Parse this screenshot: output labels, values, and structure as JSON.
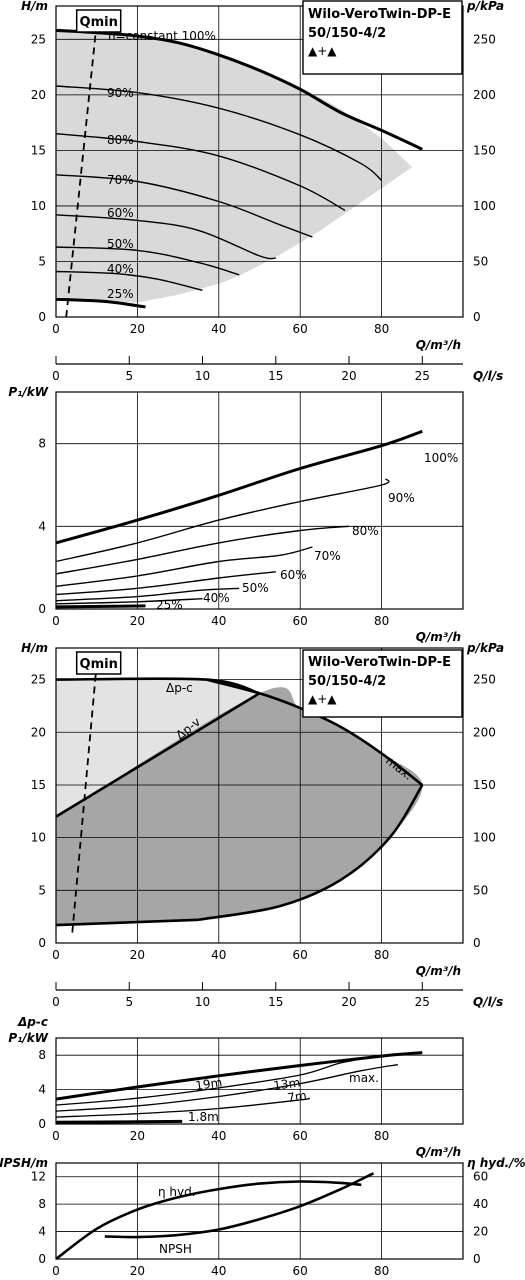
{
  "title_block": {
    "line1": "Wilo-VeroTwin-DP-E",
    "line2": "50/150-4/2",
    "pumps": "▲+▲"
  },
  "chart_data": [
    {
      "id": "hq_speed",
      "type": "line",
      "ylabel": "H/m",
      "y2label": "p/kPa",
      "xlabel": "Q/m³/h",
      "x2label": "Q/l/s",
      "xlim": [
        0,
        100
      ],
      "ylim": [
        0,
        28
      ],
      "xticks": [
        "0",
        "20",
        "40",
        "60",
        "80"
      ],
      "yticks": [
        "0",
        "5",
        "10",
        "15",
        "20",
        "25"
      ],
      "y2ticks": [
        "0",
        "50",
        "100",
        "150",
        "200",
        "250"
      ],
      "x2ticks": [
        "0",
        "5",
        "10",
        "15",
        "20",
        "25"
      ],
      "qmin_label": "Qmin",
      "qmin_line": [
        [
          2.5,
          0
        ],
        [
          10,
          26.5
        ]
      ],
      "operating_region": [
        [
          0,
          26
        ],
        [
          10,
          25.7
        ],
        [
          20,
          25.3
        ],
        [
          30,
          24.7
        ],
        [
          40,
          23.7
        ],
        [
          50,
          22.3
        ],
        [
          60,
          20.7
        ],
        [
          70,
          18.7
        ],
        [
          80,
          16.1
        ],
        [
          87.5,
          13.5
        ],
        [
          65,
          7.8
        ],
        [
          55,
          5.6
        ],
        [
          45,
          3.7
        ],
        [
          40,
          3.0
        ],
        [
          30,
          2.0
        ],
        [
          20,
          1.3
        ],
        [
          10,
          1.5
        ],
        [
          0,
          1.8
        ]
      ],
      "series": [
        {
          "name": "n=constant 100%",
          "points": [
            [
              0,
              25.8
            ],
            [
              10,
              25.6
            ],
            [
              20,
              25.3
            ],
            [
              30,
              24.7
            ],
            [
              40,
              23.6
            ],
            [
              50,
              22.2
            ],
            [
              60,
              20.5
            ],
            [
              70,
              18.4
            ],
            [
              80,
              16.8
            ],
            [
              90,
              15.1
            ]
          ]
        },
        {
          "name": "90%",
          "points": [
            [
              0,
              20.8
            ],
            [
              20,
              20.2
            ],
            [
              40,
              18.8
            ],
            [
              60,
              16.4
            ],
            [
              75,
              13.8
            ],
            [
              80,
              12.3
            ]
          ]
        },
        {
          "name": "80%",
          "points": [
            [
              0,
              16.5
            ],
            [
              20,
              15.8
            ],
            [
              40,
              14.5
            ],
            [
              60,
              11.8
            ],
            [
              71,
              9.6
            ]
          ]
        },
        {
          "name": "70%",
          "points": [
            [
              0,
              12.8
            ],
            [
              20,
              12.2
            ],
            [
              40,
              10.4
            ],
            [
              55,
              8.3
            ],
            [
              63,
              7.2
            ]
          ]
        },
        {
          "name": "60%",
          "points": [
            [
              0,
              9.2
            ],
            [
              20,
              8.7
            ],
            [
              35,
              7.8
            ],
            [
              50,
              5.5
            ],
            [
              54,
              5.3
            ]
          ]
        },
        {
          "name": "50%",
          "points": [
            [
              0,
              6.3
            ],
            [
              20,
              6.0
            ],
            [
              35,
              4.9
            ],
            [
              45,
              3.8
            ]
          ]
        },
        {
          "name": "40%",
          "points": [
            [
              0,
              4.1
            ],
            [
              15,
              3.9
            ],
            [
              25,
              3.4
            ],
            [
              36,
              2.4
            ]
          ]
        },
        {
          "name": "25%",
          "points": [
            [
              0,
              1.6
            ],
            [
              12,
              1.4
            ],
            [
              22,
              0.9
            ]
          ]
        }
      ],
      "thick_series": [
        "n=constant 100%",
        "25%"
      ]
    },
    {
      "id": "power_speed",
      "type": "line",
      "ylabel": "P₁/kW",
      "xlabel": "Q/m³/h",
      "xlim": [
        0,
        100
      ],
      "ylim": [
        0,
        10.5
      ],
      "xticks": [
        "0",
        "20",
        "40",
        "60",
        "80"
      ],
      "yticks": [
        "0",
        "4",
        "8"
      ],
      "series": [
        {
          "name": "100%",
          "points": [
            [
              0,
              3.2
            ],
            [
              20,
              4.3
            ],
            [
              40,
              5.5
            ],
            [
              60,
              6.8
            ],
            [
              80,
              7.9
            ],
            [
              90,
              8.6
            ]
          ]
        },
        {
          "name": "90%",
          "points": [
            [
              0,
              2.3
            ],
            [
              20,
              3.2
            ],
            [
              40,
              4.3
            ],
            [
              60,
              5.2
            ],
            [
              80,
              6.0
            ],
            [
              81,
              6.3
            ]
          ]
        },
        {
          "name": "80%",
          "points": [
            [
              0,
              1.7
            ],
            [
              20,
              2.4
            ],
            [
              40,
              3.2
            ],
            [
              60,
              3.8
            ],
            [
              72,
              4.0
            ]
          ]
        },
        {
          "name": "70%",
          "points": [
            [
              0,
              1.1
            ],
            [
              20,
              1.6
            ],
            [
              40,
              2.3
            ],
            [
              55,
              2.6
            ],
            [
              63,
              3.0
            ]
          ]
        },
        {
          "name": "60%",
          "points": [
            [
              0,
              0.7
            ],
            [
              20,
              1.0
            ],
            [
              40,
              1.5
            ],
            [
              54,
              1.8
            ]
          ]
        },
        {
          "name": "50%",
          "points": [
            [
              0,
              0.4
            ],
            [
              20,
              0.6
            ],
            [
              35,
              0.9
            ],
            [
              45,
              1.0
            ]
          ]
        },
        {
          "name": "40%",
          "points": [
            [
              0,
              0.25
            ],
            [
              20,
              0.35
            ],
            [
              36,
              0.5
            ]
          ]
        },
        {
          "name": "25%",
          "points": [
            [
              0,
              0.1
            ],
            [
              22,
              0.15
            ]
          ]
        }
      ],
      "thick_series": [
        "100%",
        "25%"
      ]
    },
    {
      "id": "hq_dp",
      "type": "area",
      "ylabel": "H/m",
      "y2label": "p/kPa",
      "xlabel": "Q/m³/h",
      "x2label": "Q/l/s",
      "xlim": [
        0,
        100
      ],
      "ylim": [
        0,
        28
      ],
      "xticks": [
        "0",
        "20",
        "40",
        "60",
        "80"
      ],
      "yticks": [
        "0",
        "5",
        "10",
        "15",
        "20",
        "25"
      ],
      "y2ticks": [
        "0",
        "50",
        "100",
        "150",
        "200",
        "250"
      ],
      "x2ticks": [
        "0",
        "5",
        "10",
        "15",
        "20",
        "25"
      ],
      "qmin_label": "Qmin",
      "qmin_line": [
        [
          4,
          1
        ],
        [
          10,
          26.5
        ]
      ],
      "light_region": [
        [
          0,
          25
        ],
        [
          37,
          25
        ],
        [
          50,
          23.7
        ],
        [
          0,
          12
        ]
      ],
      "dark_region": [
        [
          0,
          12
        ],
        [
          50,
          23.7
        ],
        [
          60,
          22.3
        ],
        [
          70,
          20.5
        ],
        [
          80,
          18
        ],
        [
          90,
          15
        ],
        [
          82,
          10
        ],
        [
          70,
          6
        ],
        [
          55,
          3.5
        ],
        [
          35,
          2.2
        ],
        [
          0,
          1.7
        ]
      ],
      "series": [
        {
          "name": "Δp-c",
          "points": [
            [
              0,
              25
            ],
            [
              37,
              25
            ],
            [
              50,
              23.7
            ]
          ]
        },
        {
          "name": "Δp-v",
          "points": [
            [
              0,
              12
            ],
            [
              50,
              23.7
            ]
          ]
        },
        {
          "name": "max.",
          "points": [
            [
              37,
              25
            ],
            [
              50,
              23.7
            ],
            [
              60,
              22.3
            ],
            [
              70,
              20.5
            ],
            [
              80,
              18
            ],
            [
              90,
              15
            ]
          ]
        },
        {
          "name": "",
          "points": [
            [
              90,
              15
            ],
            [
              82,
              10
            ],
            [
              70,
              6
            ],
            [
              55,
              3.5
            ],
            [
              35,
              2.2
            ]
          ]
        },
        {
          "name": "",
          "points": [
            [
              0,
              1.7
            ],
            [
              35,
              2.2
            ]
          ]
        }
      ]
    },
    {
      "id": "power_dp",
      "type": "line",
      "ylabel": "P₁/kW",
      "ylabel_top": "Δp-c",
      "xlabel": "Q/m³/h",
      "xlim": [
        0,
        100
      ],
      "ylim": [
        0,
        10
      ],
      "xticks": [
        "0",
        "20",
        "40",
        "60",
        "80"
      ],
      "yticks": [
        "0",
        "4",
        "8"
      ],
      "series": [
        {
          "name": "max.",
          "points": [
            [
              0,
              2.9
            ],
            [
              20,
              4.3
            ],
            [
              40,
              5.6
            ],
            [
              60,
              6.8
            ],
            [
              80,
              7.9
            ],
            [
              90,
              8.3
            ]
          ]
        },
        {
          "name": "19m",
          "points": [
            [
              0,
              2.2
            ],
            [
              20,
              3.0
            ],
            [
              40,
              4.2
            ],
            [
              60,
              5.7
            ],
            [
              70,
              7.1
            ],
            [
              80,
              7.9
            ]
          ]
        },
        {
          "name": "13m",
          "points": [
            [
              0,
              1.5
            ],
            [
              20,
              2.1
            ],
            [
              40,
              3.2
            ],
            [
              60,
              4.7
            ],
            [
              75,
              6.2
            ],
            [
              84,
              6.9
            ]
          ]
        },
        {
          "name": "7m",
          "points": [
            [
              0,
              0.8
            ],
            [
              20,
              1.2
            ],
            [
              40,
              1.8
            ],
            [
              60,
              2.8
            ],
            [
              62,
              3.0
            ]
          ]
        },
        {
          "name": "1.8m",
          "points": [
            [
              0,
              0.2
            ],
            [
              20,
              0.25
            ],
            [
              31,
              0.3
            ]
          ]
        }
      ],
      "thick_series": [
        "max.",
        "1.8m"
      ]
    },
    {
      "id": "npsh_eta",
      "type": "line",
      "ylabel": "NPSH/m",
      "y2label": "η hyd./%",
      "xlabel": "Q/m³/h",
      "xlim": [
        0,
        100
      ],
      "ylim": [
        0,
        14
      ],
      "y2lim": [
        0,
        70
      ],
      "xticks": [
        "0",
        "20",
        "40",
        "60",
        "80"
      ],
      "yticks": [
        "0",
        "4",
        "8",
        "12"
      ],
      "y2ticks": [
        "0",
        "20",
        "40",
        "60"
      ],
      "series": [
        {
          "name": "η hyd.",
          "axis": "y2",
          "points": [
            [
              0,
              0
            ],
            [
              10,
              22
            ],
            [
              20,
              36
            ],
            [
              30,
              45
            ],
            [
              40,
              51
            ],
            [
              50,
              55
            ],
            [
              60,
              56.5
            ],
            [
              70,
              55.5
            ],
            [
              75,
              54
            ]
          ]
        },
        {
          "name": "NPSH",
          "axis": "y",
          "points": [
            [
              12,
              3.3
            ],
            [
              20,
              3.2
            ],
            [
              30,
              3.5
            ],
            [
              40,
              4.3
            ],
            [
              50,
              5.8
            ],
            [
              60,
              7.7
            ],
            [
              70,
              10.2
            ],
            [
              78,
              12.5
            ]
          ]
        }
      ]
    }
  ]
}
